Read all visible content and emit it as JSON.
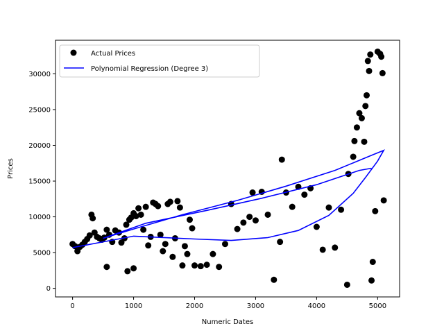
{
  "chart_data": {
    "type": "scatter",
    "title": "",
    "xlabel": "Numeric Dates",
    "ylabel": "Prices",
    "xlim": [
      -280,
      5360
    ],
    "ylim": [
      -1200,
      34700
    ],
    "xticks": [
      0,
      1000,
      2000,
      3000,
      4000,
      5000
    ],
    "yticks": [
      0,
      5000,
      10000,
      15000,
      20000,
      25000,
      30000
    ],
    "grid": false,
    "legend_position": "top-left",
    "colors": {
      "scatter": "#000000",
      "fit_line": "#0000ff"
    },
    "series": [
      {
        "name": "Actual Prices",
        "kind": "scatter",
        "color": "#000000",
        "points": [
          [
            0,
            6200
          ],
          [
            40,
            5900
          ],
          [
            80,
            5200
          ],
          [
            120,
            5800
          ],
          [
            160,
            6100
          ],
          [
            200,
            6500
          ],
          [
            240,
            6900
          ],
          [
            280,
            7400
          ],
          [
            310,
            10300
          ],
          [
            330,
            9800
          ],
          [
            360,
            7800
          ],
          [
            400,
            7200
          ],
          [
            440,
            7000
          ],
          [
            480,
            6800
          ],
          [
            520,
            7100
          ],
          [
            560,
            8200
          ],
          [
            560,
            3000
          ],
          [
            600,
            7500
          ],
          [
            650,
            6500
          ],
          [
            700,
            8100
          ],
          [
            760,
            7800
          ],
          [
            800,
            6400
          ],
          [
            850,
            7000
          ],
          [
            880,
            8900
          ],
          [
            900,
            2400
          ],
          [
            930,
            9600
          ],
          [
            960,
            9900
          ],
          [
            1000,
            10500
          ],
          [
            1000,
            2800
          ],
          [
            1040,
            10100
          ],
          [
            1080,
            11200
          ],
          [
            1120,
            10300
          ],
          [
            1160,
            8200
          ],
          [
            1200,
            11400
          ],
          [
            1240,
            6000
          ],
          [
            1280,
            7200
          ],
          [
            1320,
            12000
          ],
          [
            1360,
            11800
          ],
          [
            1400,
            11500
          ],
          [
            1440,
            7500
          ],
          [
            1480,
            5200
          ],
          [
            1520,
            6200
          ],
          [
            1560,
            11800
          ],
          [
            1600,
            12100
          ],
          [
            1640,
            4400
          ],
          [
            1680,
            7000
          ],
          [
            1720,
            12200
          ],
          [
            1760,
            11300
          ],
          [
            1800,
            3200
          ],
          [
            1840,
            5900
          ],
          [
            1880,
            4800
          ],
          [
            1920,
            9600
          ],
          [
            1960,
            8400
          ],
          [
            2000,
            3200
          ],
          [
            2100,
            3100
          ],
          [
            2200,
            3300
          ],
          [
            2300,
            4800
          ],
          [
            2400,
            3000
          ],
          [
            2500,
            6200
          ],
          [
            2600,
            11800
          ],
          [
            2700,
            8300
          ],
          [
            2800,
            9200
          ],
          [
            2900,
            10000
          ],
          [
            2950,
            13400
          ],
          [
            3000,
            9500
          ],
          [
            3100,
            13500
          ],
          [
            3200,
            10300
          ],
          [
            3300,
            1200
          ],
          [
            3400,
            6500
          ],
          [
            3430,
            18000
          ],
          [
            3500,
            13400
          ],
          [
            3600,
            11400
          ],
          [
            3700,
            14200
          ],
          [
            3800,
            13100
          ],
          [
            3900,
            14000
          ],
          [
            4000,
            8600
          ],
          [
            4100,
            5400
          ],
          [
            4200,
            11300
          ],
          [
            4300,
            5700
          ],
          [
            4400,
            11000
          ],
          [
            4500,
            500
          ],
          [
            4520,
            16000
          ],
          [
            4600,
            18400
          ],
          [
            4620,
            20600
          ],
          [
            4660,
            22500
          ],
          [
            4700,
            24500
          ],
          [
            4740,
            23800
          ],
          [
            4780,
            20500
          ],
          [
            4800,
            25500
          ],
          [
            4820,
            27000
          ],
          [
            4840,
            31800
          ],
          [
            4860,
            30400
          ],
          [
            4880,
            32700
          ],
          [
            4900,
            1100
          ],
          [
            4920,
            3700
          ],
          [
            4960,
            10800
          ],
          [
            5000,
            33100
          ],
          [
            5040,
            32800
          ],
          [
            5060,
            32400
          ],
          [
            5080,
            30100
          ],
          [
            5100,
            12300
          ]
        ]
      },
      {
        "name": "Polynomial Regression (Degree 3)",
        "kind": "line",
        "color": "#0000ff",
        "points": [
          [
            0,
            5700
          ],
          [
            1000,
            7300
          ],
          [
            2000,
            6900
          ],
          [
            2600,
            6700
          ],
          [
            3200,
            7100
          ],
          [
            3700,
            8100
          ],
          [
            4200,
            10200
          ],
          [
            4600,
            13300
          ],
          [
            4800,
            15500
          ],
          [
            5000,
            17800
          ],
          [
            5100,
            19300
          ],
          [
            4900,
            18600
          ],
          [
            4300,
            16500
          ],
          [
            3500,
            14300
          ],
          [
            2700,
            12300
          ],
          [
            1800,
            10300
          ],
          [
            1000,
            8300
          ],
          [
            500,
            7000
          ],
          [
            1200,
            9100
          ],
          [
            2200,
            10900
          ],
          [
            3100,
            12600
          ],
          [
            4000,
            14500
          ],
          [
            4700,
            16500
          ],
          [
            4900,
            16800
          ]
        ]
      }
    ]
  }
}
